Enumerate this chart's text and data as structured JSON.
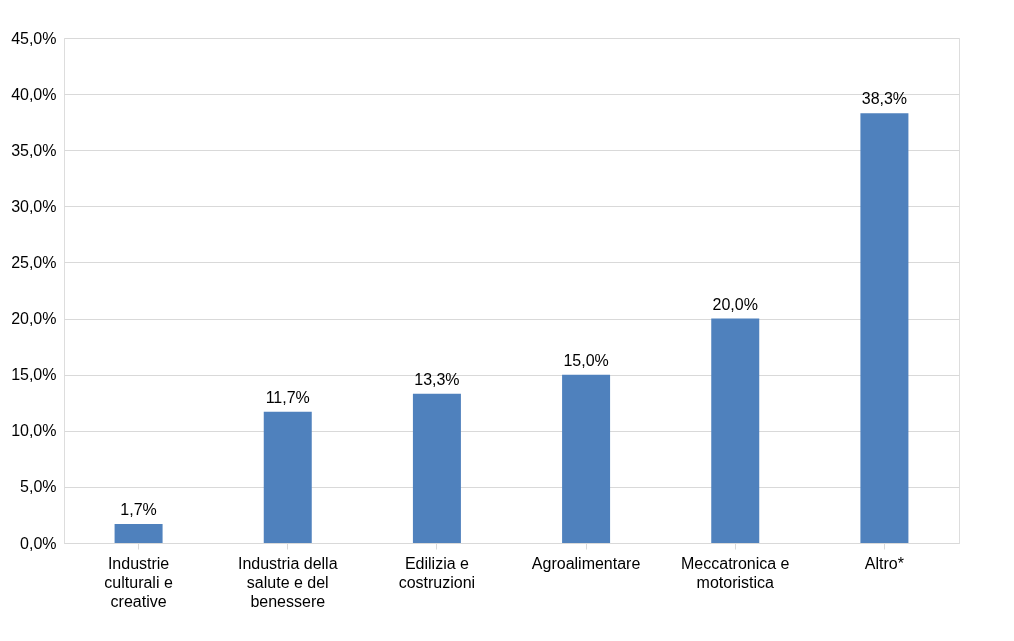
{
  "chart_data": {
    "type": "bar",
    "categories": [
      "Industrie culturali e creative",
      "Industria della salute e del benessere",
      "Edilizia e costruzioni",
      "Agroalimentare",
      "Meccatronica e motoristica",
      "Altro*"
    ],
    "values": [
      1.7,
      11.7,
      13.3,
      15.0,
      20.0,
      38.3
    ],
    "value_labels": [
      "1,7%",
      "11,7%",
      "13,3%",
      "15,0%",
      "20,0%",
      "38,3%"
    ],
    "color": "#4f81bd",
    "ylim": [
      0,
      45
    ],
    "yticks": [
      {
        "value": 0,
        "label": "0,0%"
      },
      {
        "value": 5,
        "label": "5,0%"
      },
      {
        "value": 10,
        "label": "10,0%"
      },
      {
        "value": 15,
        "label": "15,0%"
      },
      {
        "value": 20,
        "label": "20,0%"
      },
      {
        "value": 25,
        "label": "25,0%"
      },
      {
        "value": 30,
        "label": "30,0%"
      },
      {
        "value": 35,
        "label": "35,0%"
      },
      {
        "value": 40,
        "label": "40,0%"
      },
      {
        "value": 45,
        "label": "45,0%"
      }
    ],
    "grid": "y"
  }
}
